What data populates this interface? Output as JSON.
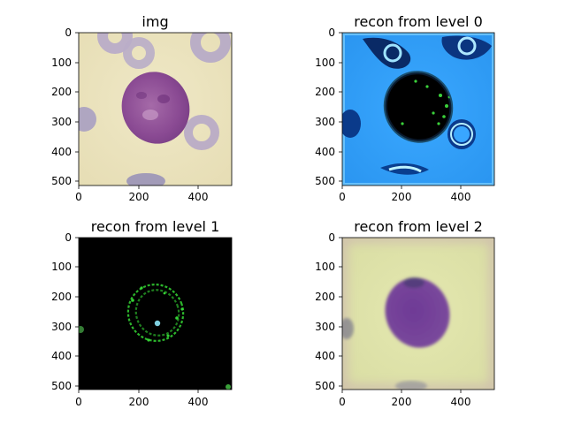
{
  "panels": [
    {
      "title": "img",
      "xticks": [
        "0",
        "200",
        "400"
      ],
      "yticks": [
        "0",
        "100",
        "200",
        "300",
        "400",
        "500"
      ]
    },
    {
      "title": "recon from level 0",
      "xticks": [
        "0",
        "200",
        "400"
      ],
      "yticks": [
        "0",
        "100",
        "200",
        "300",
        "400",
        "500"
      ]
    },
    {
      "title": "recon from level 1",
      "xticks": [
        "0",
        "200",
        "400"
      ],
      "yticks": [
        "0",
        "100",
        "200",
        "300",
        "400",
        "500"
      ]
    },
    {
      "title": "recon from level 2",
      "xticks": [
        "0",
        "200",
        "400"
      ],
      "yticks": [
        "0",
        "100",
        "200",
        "300",
        "400",
        "500"
      ]
    }
  ]
}
